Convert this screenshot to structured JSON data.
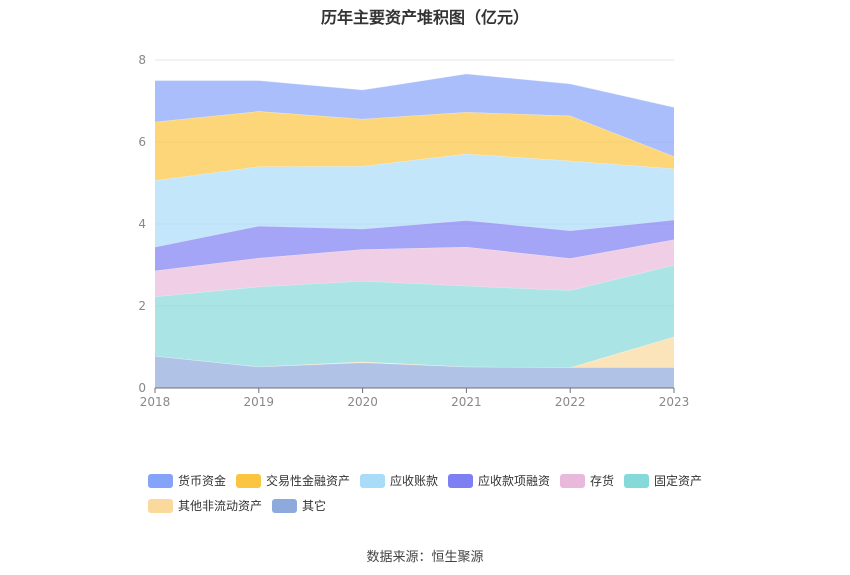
{
  "chart_data": {
    "type": "area",
    "stacked": true,
    "title": "历年主要资产堆积图（亿元）",
    "x": [
      "2018",
      "2019",
      "2020",
      "2021",
      "2022",
      "2023"
    ],
    "ylim": [
      0,
      8
    ],
    "yticks": [
      0,
      2,
      4,
      6,
      8
    ],
    "grid": true,
    "legend_position": "bottom",
    "series": [
      {
        "name": "其它",
        "color": "#8eaadc",
        "values": [
          0.78,
          0.52,
          0.62,
          0.52,
          0.5,
          0.5
        ]
      },
      {
        "name": "其他非流动资产",
        "color": "#fbd89c",
        "values": [
          0.0,
          0.0,
          0.02,
          0.0,
          0.0,
          0.75
        ]
      },
      {
        "name": "固定资产",
        "color": "#86d9d9",
        "values": [
          1.45,
          1.95,
          1.97,
          1.97,
          1.88,
          1.75
        ]
      },
      {
        "name": "存货",
        "color": "#e9b9db",
        "values": [
          0.63,
          0.7,
          0.77,
          0.95,
          0.78,
          0.62
        ]
      },
      {
        "name": "应收款项融资",
        "color": "#7e7ff2",
        "values": [
          0.58,
          0.78,
          0.5,
          0.65,
          0.68,
          0.48
        ]
      },
      {
        "name": "应收账款",
        "color": "#a9dcf9",
        "values": [
          1.62,
          1.45,
          1.53,
          1.62,
          1.7,
          1.25
        ]
      },
      {
        "name": "交易性金融资产",
        "color": "#fcc541",
        "values": [
          1.43,
          1.35,
          1.15,
          1.02,
          1.1,
          0.3
        ]
      },
      {
        "name": "货币资金",
        "color": "#85a3f9",
        "values": [
          1.01,
          0.75,
          0.71,
          0.93,
          0.78,
          1.2
        ]
      }
    ],
    "legend_order": [
      "货币资金",
      "交易性金融资产",
      "应收账款",
      "应收款项融资",
      "存货",
      "固定资产",
      "其他非流动资产",
      "其它"
    ]
  },
  "source_text": "数据来源：恒生聚源"
}
